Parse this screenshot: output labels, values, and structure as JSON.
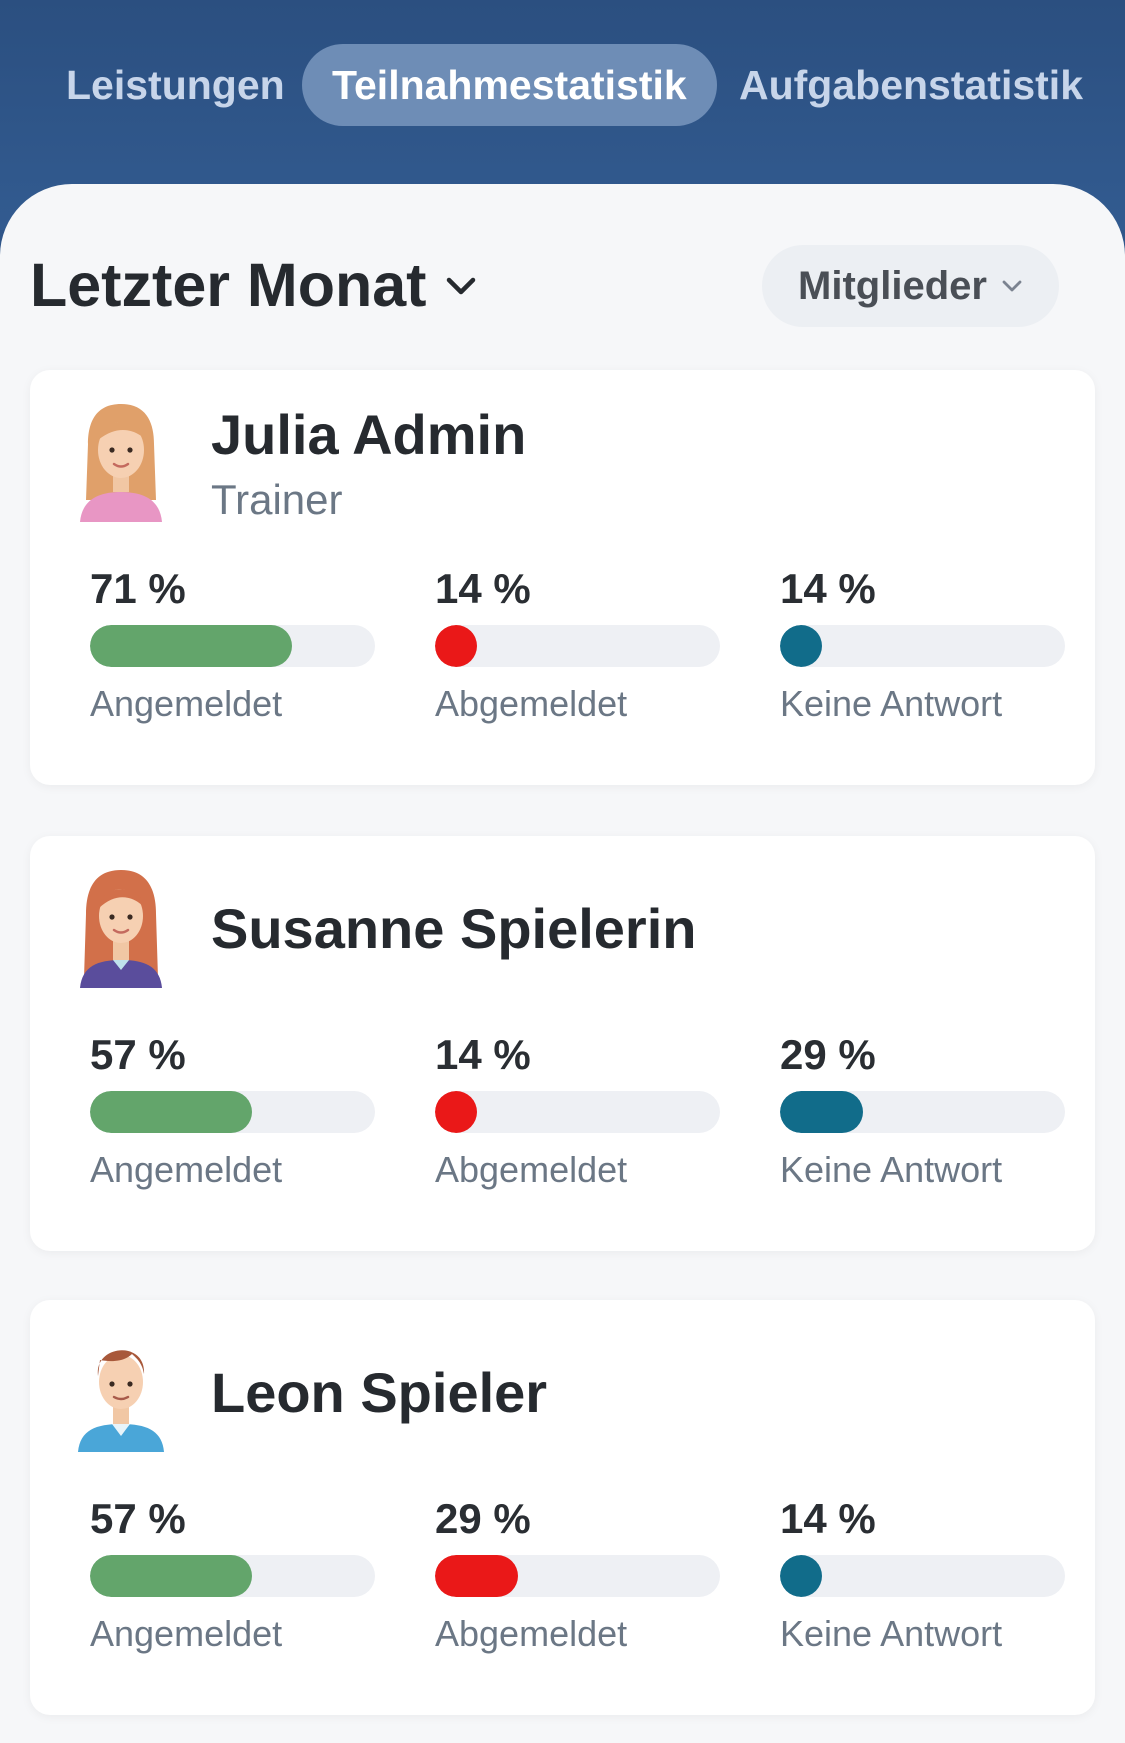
{
  "tabs": [
    {
      "label": "Leistungen",
      "active": false
    },
    {
      "label": "Teilnahmestatistik",
      "active": true
    },
    {
      "label": "Aufgabenstatistik",
      "active": false
    }
  ],
  "period_selector": {
    "label": "Letzter Monat",
    "icon": "chevron-down-icon"
  },
  "filter_dropdown": {
    "label": "Mitglieder",
    "icon": "chevron-down-icon"
  },
  "colors": {
    "header": "#2f5589",
    "active_tab": "#6e8db6",
    "registered": "#63a56b",
    "deregistered": "#ea1818",
    "no_answer": "#116c8a"
  },
  "members": [
    {
      "name": "Julia Admin",
      "role": "Trainer",
      "avatar": "female-avatar-blonde",
      "stats": [
        {
          "value": "71 %",
          "fraction": 0.71,
          "label": "Angemeldet"
        },
        {
          "value": "14 %",
          "fraction": 0.14,
          "label": "Abgemeldet"
        },
        {
          "value": "14 %",
          "fraction": 0.14,
          "label": "Keine Antwort"
        }
      ]
    },
    {
      "name": "Susanne Spielerin",
      "role": "",
      "avatar": "female-avatar-redhead",
      "stats": [
        {
          "value": "57 %",
          "fraction": 0.57,
          "label": "Angemeldet"
        },
        {
          "value": "14 %",
          "fraction": 0.14,
          "label": "Abgemeldet"
        },
        {
          "value": "29 %",
          "fraction": 0.29,
          "label": "Keine Antwort"
        }
      ]
    },
    {
      "name": "Leon Spieler",
      "role": "",
      "avatar": "male-avatar",
      "stats": [
        {
          "value": "57 %",
          "fraction": 0.57,
          "label": "Angemeldet"
        },
        {
          "value": "29 %",
          "fraction": 0.29,
          "label": "Abgemeldet"
        },
        {
          "value": "14 %",
          "fraction": 0.14,
          "label": "Keine Antwort"
        }
      ]
    }
  ]
}
